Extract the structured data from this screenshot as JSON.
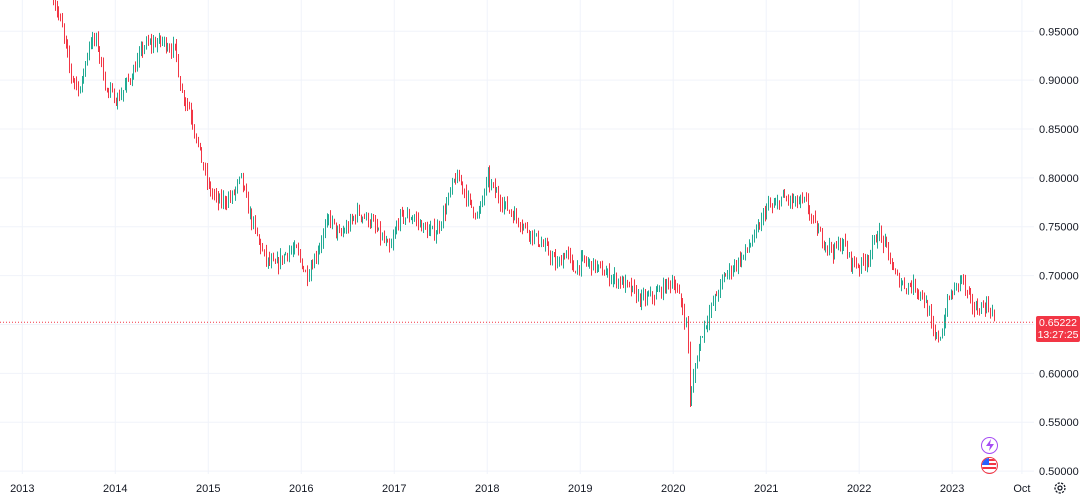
{
  "chart_data": {
    "type": "candlestick",
    "instrument_hint": "weekly price series",
    "y_axis": {
      "ticks": [
        "0.95000",
        "0.90000",
        "0.85000",
        "0.80000",
        "0.75000",
        "0.70000",
        "0.65000",
        "0.60000",
        "0.55000",
        "0.50000"
      ],
      "ylim": [
        0.497,
        0.982
      ]
    },
    "x_axis": {
      "ticks": [
        "2013",
        "2014",
        "2015",
        "2016",
        "2017",
        "2018",
        "2019",
        "2020",
        "2021",
        "2022",
        "2023",
        "Oct"
      ],
      "range": [
        2012.76,
        2023.88
      ]
    },
    "last_price": {
      "value": "0.65222",
      "countdown": "13:27:25",
      "line_color": "#f23645"
    },
    "colors": {
      "up": "#22ab94",
      "down": "#f23645",
      "grid": "#f0f3fa"
    },
    "grid": true,
    "anchors": [
      [
        2013.33,
        0.985
      ],
      [
        2013.42,
        0.955
      ],
      [
        2013.52,
        0.905
      ],
      [
        2013.62,
        0.89
      ],
      [
        2013.72,
        0.94
      ],
      [
        2013.8,
        0.94
      ],
      [
        2013.9,
        0.89
      ],
      [
        2014.02,
        0.88
      ],
      [
        2014.2,
        0.91
      ],
      [
        2014.3,
        0.935
      ],
      [
        2014.5,
        0.94
      ],
      [
        2014.65,
        0.93
      ],
      [
        2014.7,
        0.89
      ],
      [
        2014.8,
        0.87
      ],
      [
        2014.92,
        0.82
      ],
      [
        2015.0,
        0.79
      ],
      [
        2015.1,
        0.775
      ],
      [
        2015.25,
        0.78
      ],
      [
        2015.35,
        0.8
      ],
      [
        2015.42,
        0.77
      ],
      [
        2015.52,
        0.74
      ],
      [
        2015.62,
        0.715
      ],
      [
        2015.72,
        0.71
      ],
      [
        2015.85,
        0.725
      ],
      [
        2015.95,
        0.725
      ],
      [
        2016.05,
        0.7
      ],
      [
        2016.15,
        0.72
      ],
      [
        2016.3,
        0.76
      ],
      [
        2016.4,
        0.74
      ],
      [
        2016.5,
        0.75
      ],
      [
        2016.6,
        0.765
      ],
      [
        2016.75,
        0.755
      ],
      [
        2016.85,
        0.74
      ],
      [
        2016.95,
        0.725
      ],
      [
        2017.05,
        0.76
      ],
      [
        2017.2,
        0.76
      ],
      [
        2017.35,
        0.745
      ],
      [
        2017.45,
        0.745
      ],
      [
        2017.55,
        0.77
      ],
      [
        2017.65,
        0.8
      ],
      [
        2017.72,
        0.795
      ],
      [
        2017.8,
        0.775
      ],
      [
        2017.9,
        0.76
      ],
      [
        2018.0,
        0.8
      ],
      [
        2018.05,
        0.79
      ],
      [
        2018.2,
        0.77
      ],
      [
        2018.35,
        0.755
      ],
      [
        2018.45,
        0.745
      ],
      [
        2018.55,
        0.735
      ],
      [
        2018.65,
        0.725
      ],
      [
        2018.75,
        0.71
      ],
      [
        2018.85,
        0.725
      ],
      [
        2018.92,
        0.705
      ],
      [
        2019.02,
        0.715
      ],
      [
        2019.15,
        0.71
      ],
      [
        2019.3,
        0.7
      ],
      [
        2019.42,
        0.695
      ],
      [
        2019.55,
        0.685
      ],
      [
        2019.65,
        0.675
      ],
      [
        2019.8,
        0.68
      ],
      [
        2019.92,
        0.69
      ],
      [
        2020.0,
        0.695
      ],
      [
        2020.1,
        0.665
      ],
      [
        2020.15,
        0.645
      ],
      [
        2020.18,
        0.565
      ],
      [
        2020.22,
        0.6
      ],
      [
        2020.3,
        0.64
      ],
      [
        2020.42,
        0.67
      ],
      [
        2020.55,
        0.7
      ],
      [
        2020.65,
        0.71
      ],
      [
        2020.75,
        0.72
      ],
      [
        2020.9,
        0.745
      ],
      [
        2021.0,
        0.77
      ],
      [
        2021.1,
        0.77
      ],
      [
        2021.15,
        0.78
      ],
      [
        2021.3,
        0.775
      ],
      [
        2021.42,
        0.775
      ],
      [
        2021.52,
        0.75
      ],
      [
        2021.62,
        0.735
      ],
      [
        2021.72,
        0.725
      ],
      [
        2021.82,
        0.735
      ],
      [
        2021.9,
        0.715
      ],
      [
        2022.0,
        0.71
      ],
      [
        2022.1,
        0.72
      ],
      [
        2022.2,
        0.745
      ],
      [
        2022.3,
        0.725
      ],
      [
        2022.38,
        0.7
      ],
      [
        2022.48,
        0.69
      ],
      [
        2022.58,
        0.69
      ],
      [
        2022.68,
        0.68
      ],
      [
        2022.75,
        0.66
      ],
      [
        2022.8,
        0.635
      ],
      [
        2022.88,
        0.64
      ],
      [
        2022.95,
        0.675
      ],
      [
        2023.05,
        0.69
      ],
      [
        2023.1,
        0.7
      ],
      [
        2023.15,
        0.68
      ],
      [
        2023.25,
        0.665
      ],
      [
        2023.35,
        0.67
      ],
      [
        2023.42,
        0.665
      ],
      [
        2023.45,
        0.6522
      ]
    ]
  },
  "icons": {
    "bolt": "lightning-icon",
    "flag": "us-flag-icon",
    "settings": "gear-icon"
  }
}
